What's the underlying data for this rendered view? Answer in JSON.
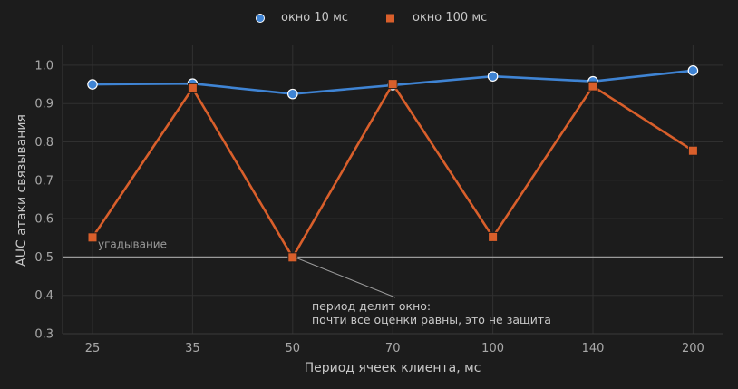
{
  "chart_data": {
    "type": "line",
    "categories": [
      "25",
      "35",
      "50",
      "70",
      "100",
      "140",
      "200"
    ],
    "series": [
      {
        "name": "окно 10 мс",
        "values": [
          0.95,
          0.952,
          0.925,
          0.948,
          0.971,
          0.958,
          0.986
        ],
        "color": "#3f84d4",
        "marker": "circle"
      },
      {
        "name": "окно 100 мс",
        "values": [
          0.551,
          0.94,
          0.499,
          0.951,
          0.552,
          0.945,
          0.777
        ],
        "color": "#d95f2b",
        "marker": "square"
      }
    ],
    "xlabel": "Период ячеек клиента, мс",
    "ylabel": "AUC атаки связывания",
    "ylim": [
      0.3,
      1.05
    ],
    "yticks": [
      "0.3",
      "0.4",
      "0.5",
      "0.6",
      "0.7",
      "0.8",
      "0.9",
      "1.0"
    ],
    "grid": true,
    "legend_position": "top-center",
    "reference_line": {
      "value": 0.5,
      "label": "угадывание"
    },
    "annotation": {
      "lines": [
        "период делит окно:",
        "почти все оценки равны, это не защита"
      ],
      "target_category": "50",
      "target_value": 0.5
    }
  }
}
